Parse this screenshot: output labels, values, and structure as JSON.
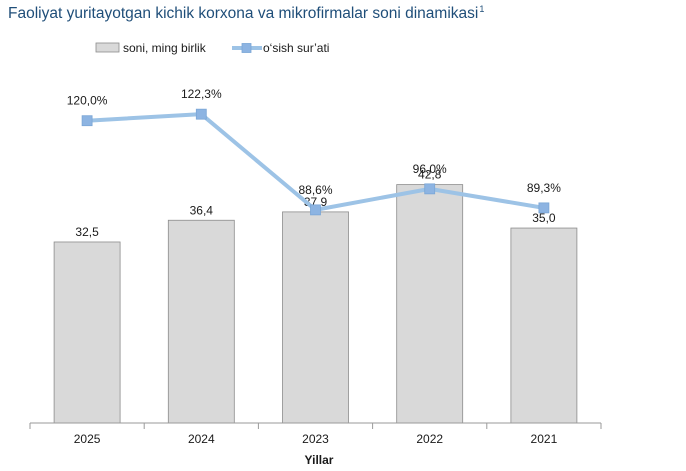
{
  "chart_data": {
    "type": "bar",
    "title": "Faoliyat yuritayotgan kichik korxona va mikrofirmalar soni dinamikasi",
    "title_footnote": "1",
    "xlabel": "Yillar",
    "ylabel": "",
    "categories": [
      "2025",
      "2024",
      "2023",
      "2022",
      "2021"
    ],
    "series": [
      {
        "name": "soni, ming birlik",
        "type": "bar",
        "values": [
          32.5,
          36.4,
          37.9,
          42.8,
          35.0
        ],
        "labels": [
          "32,5",
          "36,4",
          "37,9",
          "42,8",
          "35,0"
        ],
        "color": "#d9d9d9"
      },
      {
        "name": "o‘sish sur’ati",
        "type": "line",
        "values": [
          120.0,
          122.3,
          88.6,
          96.0,
          89.3
        ],
        "labels": [
          "120,0%",
          "122,3%",
          "88,6%",
          "96,0%",
          "89,3%"
        ],
        "color": "#9dc3e6"
      }
    ],
    "legend_position": "top",
    "grid": false
  }
}
